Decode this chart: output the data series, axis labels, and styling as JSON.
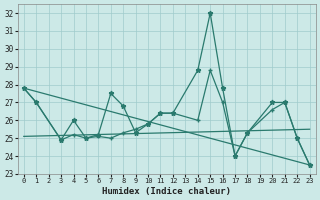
{
  "xlabel": "Humidex (Indice chaleur)",
  "xlim": [
    -0.5,
    23.5
  ],
  "ylim": [
    23,
    32.5
  ],
  "yticks": [
    23,
    24,
    25,
    26,
    27,
    28,
    29,
    30,
    31,
    32
  ],
  "xticks": [
    0,
    1,
    2,
    3,
    4,
    5,
    6,
    7,
    8,
    9,
    10,
    11,
    12,
    13,
    14,
    15,
    16,
    17,
    18,
    19,
    20,
    21,
    22,
    23
  ],
  "background_color": "#cce9e7",
  "grid_color": "#a0cccc",
  "line_color": "#2a7a6e",
  "series": [
    {
      "x": [
        0,
        1,
        3,
        4,
        5,
        6,
        7,
        8,
        9,
        10,
        11,
        12,
        14,
        15,
        16,
        17,
        18,
        20,
        21,
        22,
        23
      ],
      "y": [
        27.8,
        27.0,
        24.9,
        26.0,
        25.0,
        25.2,
        27.5,
        26.8,
        25.3,
        25.8,
        26.4,
        26.4,
        28.8,
        32.0,
        27.8,
        24.0,
        25.3,
        27.0,
        27.0,
        25.0,
        23.5
      ],
      "marker": "*",
      "ms": 3.5,
      "lw": 0.9
    },
    {
      "x": [
        0,
        1,
        3,
        4,
        5,
        6,
        7,
        8,
        9,
        10,
        11,
        12,
        14,
        15,
        16,
        17,
        18,
        20,
        21,
        22,
        23
      ],
      "y": [
        27.8,
        27.0,
        24.9,
        25.2,
        25.0,
        25.1,
        25.0,
        25.3,
        25.5,
        25.8,
        26.4,
        26.4,
        26.0,
        28.8,
        27.0,
        24.0,
        25.3,
        26.6,
        27.0,
        25.0,
        23.5
      ],
      "marker": "+",
      "ms": 3.5,
      "lw": 0.9
    },
    {
      "x": [
        0,
        23
      ],
      "y": [
        27.8,
        23.5
      ],
      "marker": null,
      "lw": 0.9
    },
    {
      "x": [
        0,
        23
      ],
      "y": [
        25.1,
        25.5
      ],
      "marker": null,
      "lw": 0.9
    }
  ]
}
